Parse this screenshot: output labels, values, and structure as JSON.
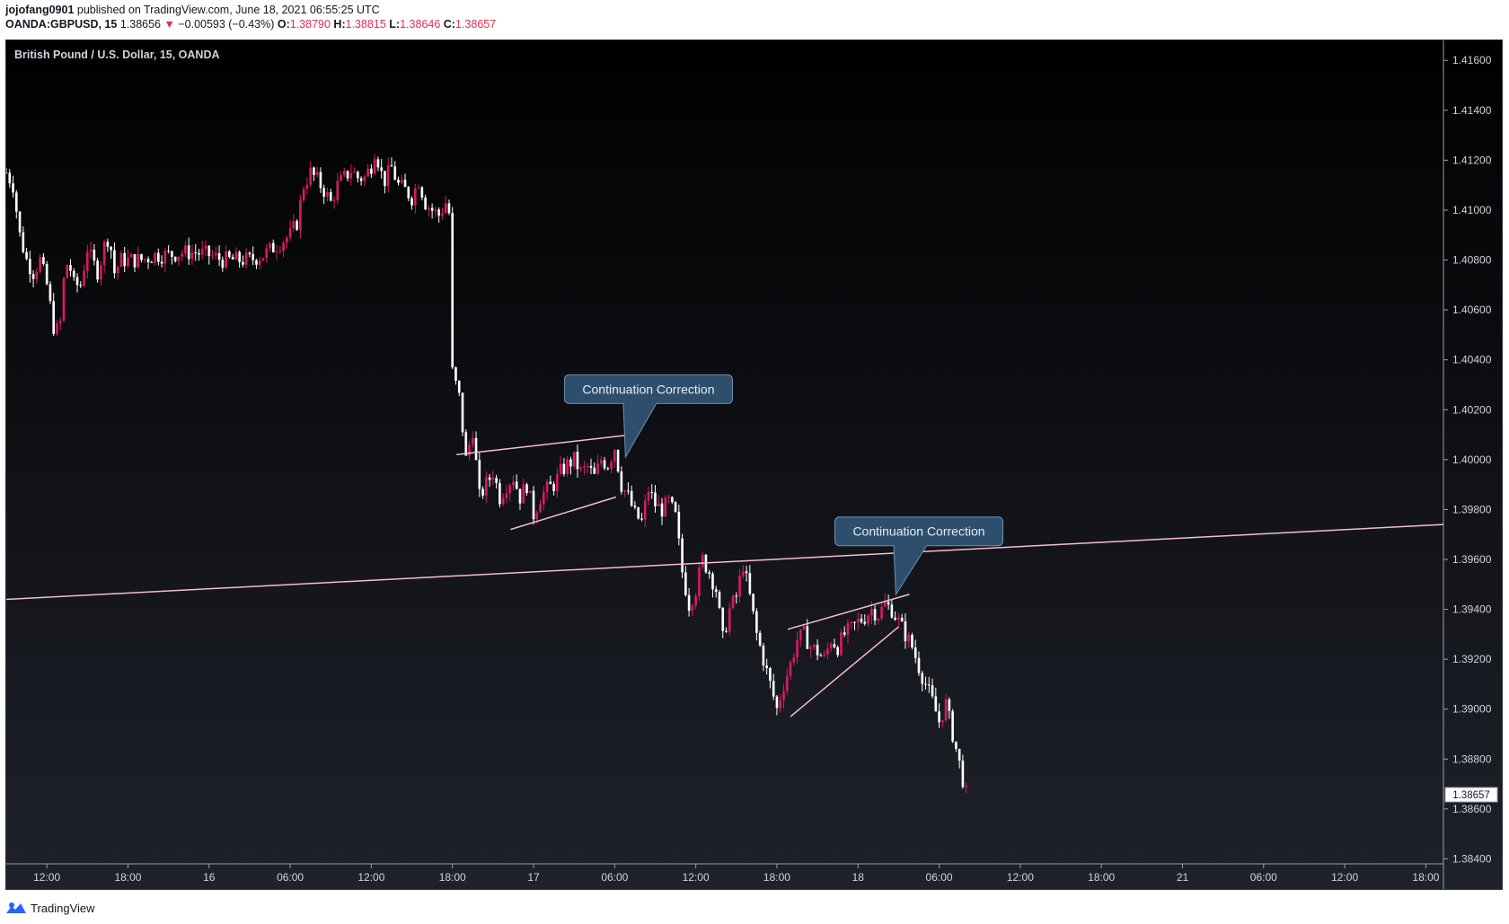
{
  "header": {
    "author": "jojofang0901",
    "published": " published on TradingView.com, June 18, 2021 06:55:25 UTC",
    "symbol": "OANDA:GBPUSD, 15",
    "last": "1.38656",
    "arrow": "▼",
    "change": "−0.00593 (−0.43%)",
    "o_label": "O:",
    "o": "1.38790",
    "h_label": "H:",
    "h": "1.38815",
    "l_label": "L:",
    "l": "1.38646",
    "c_label": "C:",
    "c": "1.38657"
  },
  "chart_title": "British Pound / U.S. Dollar, 15, OANDA",
  "footer": {
    "brand": "TradingView"
  },
  "colors": {
    "up": "#d81b60",
    "down": "#ffffff",
    "trendline": "#f8bbd0",
    "callout": "#2e4e6e",
    "callout_border": "#6f8fae"
  },
  "chart_data": {
    "type": "candlestick",
    "ylim": [
      1.3838,
      1.4168
    ],
    "y_ticks": [
      "1.38400",
      "1.38600",
      "1.38800",
      "1.39000",
      "1.39200",
      "1.39400",
      "1.39600",
      "1.39800",
      "1.40000",
      "1.40200",
      "1.40400",
      "1.40600",
      "1.40800",
      "1.41000",
      "1.41200",
      "1.41400",
      "1.41600"
    ],
    "y_tick_values": [
      1.384,
      1.386,
      1.388,
      1.39,
      1.392,
      1.394,
      1.396,
      1.398,
      1.4,
      1.402,
      1.404,
      1.406,
      1.408,
      1.41,
      1.412,
      1.414,
      1.416
    ],
    "x_range_hours": [
      -3.0,
      103.3
    ],
    "x_ticks": [
      {
        "label": "12:00",
        "h": 0
      },
      {
        "label": "18:00",
        "h": 6
      },
      {
        "label": "16",
        "h": 12
      },
      {
        "label": "06:00",
        "h": 18
      },
      {
        "label": "12:00",
        "h": 24
      },
      {
        "label": "18:00",
        "h": 30
      },
      {
        "label": "17",
        "h": 36
      },
      {
        "label": "06:00",
        "h": 42
      },
      {
        "label": "12:00",
        "h": 48
      },
      {
        "label": "18:00",
        "h": 54
      },
      {
        "label": "18",
        "h": 60
      },
      {
        "label": "06:00",
        "h": 66
      },
      {
        "label": "12:00",
        "h": 72
      },
      {
        "label": "18:00",
        "h": 78
      },
      {
        "label": "21",
        "h": 84
      },
      {
        "label": "06:00",
        "h": 90
      },
      {
        "label": "12:00",
        "h": 96
      },
      {
        "label": "18:00",
        "h": 102
      }
    ],
    "price_path": [
      [
        -3.0,
        1.4115
      ],
      [
        -2.5,
        1.411
      ],
      [
        -2.0,
        1.409
      ],
      [
        -1.5,
        1.408
      ],
      [
        -1.0,
        1.4075
      ],
      [
        -0.5,
        1.408
      ],
      [
        0.0,
        1.407
      ],
      [
        0.6,
        1.405
      ],
      [
        1.0,
        1.4055
      ],
      [
        1.3,
        1.4075
      ],
      [
        1.6,
        1.408
      ],
      [
        2.0,
        1.407
      ],
      [
        2.5,
        1.407
      ],
      [
        3.0,
        1.4085
      ],
      [
        3.3,
        1.408
      ],
      [
        3.8,
        1.4075
      ],
      [
        4.2,
        1.4085
      ],
      [
        4.6,
        1.409
      ],
      [
        5.0,
        1.4075
      ],
      [
        5.5,
        1.408
      ],
      [
        6.0,
        1.408
      ],
      [
        7.0,
        1.408
      ],
      [
        8.0,
        1.4082
      ],
      [
        9.0,
        1.4082
      ],
      [
        10.0,
        1.4083
      ],
      [
        11.0,
        1.4083
      ],
      [
        12.0,
        1.4082
      ],
      [
        13.0,
        1.408
      ],
      [
        14.0,
        1.408
      ],
      [
        15.0,
        1.408
      ],
      [
        16.0,
        1.4082
      ],
      [
        17.0,
        1.4086
      ],
      [
        18.0,
        1.409
      ],
      [
        18.5,
        1.4095
      ],
      [
        19.0,
        1.411
      ],
      [
        19.5,
        1.4115
      ],
      [
        20.0,
        1.4112
      ],
      [
        20.5,
        1.4108
      ],
      [
        21.0,
        1.4103
      ],
      [
        21.5,
        1.411
      ],
      [
        22.0,
        1.4113
      ],
      [
        22.5,
        1.4116
      ],
      [
        23.0,
        1.4113
      ],
      [
        23.5,
        1.4113
      ],
      [
        24.0,
        1.4118
      ],
      [
        24.3,
        1.4125
      ],
      [
        24.7,
        1.4115
      ],
      [
        25.0,
        1.4112
      ],
      [
        25.5,
        1.4117
      ],
      [
        26.0,
        1.411
      ],
      [
        26.5,
        1.4108
      ],
      [
        27.0,
        1.4105
      ],
      [
        27.5,
        1.4112
      ],
      [
        28.0,
        1.4103
      ],
      [
        28.5,
        1.41
      ],
      [
        29.0,
        1.4098
      ],
      [
        29.5,
        1.4103
      ],
      [
        29.8,
        1.4098
      ],
      [
        30.0,
        1.4035
      ],
      [
        30.5,
        1.4025
      ],
      [
        31.0,
        1.4
      ],
      [
        31.5,
        1.4012
      ],
      [
        32.0,
        1.3985
      ],
      [
        32.5,
        1.399
      ],
      [
        33.0,
        1.3995
      ],
      [
        33.5,
        1.3985
      ],
      [
        34.0,
        1.399
      ],
      [
        34.5,
        1.3993
      ],
      [
        35.0,
        1.3985
      ],
      [
        35.5,
        1.399
      ],
      [
        36.0,
        1.3978
      ],
      [
        36.5,
        1.3985
      ],
      [
        37.0,
        1.3988
      ],
      [
        37.5,
        1.399
      ],
      [
        38.0,
        1.3995
      ],
      [
        38.5,
        1.3998
      ],
      [
        39.0,
        1.4
      ],
      [
        39.5,
        1.3995
      ],
      [
        40.0,
        1.3997
      ],
      [
        40.5,
        1.3993
      ],
      [
        41.0,
        1.4
      ],
      [
        41.5,
        1.3998
      ],
      [
        42.0,
        1.4005
      ],
      [
        42.5,
        1.399
      ],
      [
        43.0,
        1.3985
      ],
      [
        43.5,
        1.3978
      ],
      [
        44.0,
        1.3975
      ],
      [
        44.5,
        1.3988
      ],
      [
        45.0,
        1.3982
      ],
      [
        45.5,
        1.398
      ],
      [
        46.0,
        1.3983
      ],
      [
        46.5,
        1.3977
      ],
      [
        47.0,
        1.3955
      ],
      [
        47.5,
        1.3942
      ],
      [
        48.0,
        1.3948
      ],
      [
        48.5,
        1.396
      ],
      [
        49.0,
        1.3955
      ],
      [
        49.5,
        1.3948
      ],
      [
        50.0,
        1.3928
      ],
      [
        50.5,
        1.394
      ],
      [
        51.0,
        1.3945
      ],
      [
        51.5,
        1.3958
      ],
      [
        52.0,
        1.3945
      ],
      [
        52.5,
        1.393
      ],
      [
        53.0,
        1.392
      ],
      [
        53.5,
        1.391
      ],
      [
        54.0,
        1.39
      ],
      [
        54.5,
        1.391
      ],
      [
        55.0,
        1.3918
      ],
      [
        55.5,
        1.3928
      ],
      [
        56.0,
        1.393
      ],
      [
        56.5,
        1.3925
      ],
      [
        57.0,
        1.3923
      ],
      [
        57.5,
        1.392
      ],
      [
        58.0,
        1.3928
      ],
      [
        58.5,
        1.3925
      ],
      [
        59.0,
        1.393
      ],
      [
        59.5,
        1.3932
      ],
      [
        60.0,
        1.3935
      ],
      [
        60.5,
        1.3937
      ],
      [
        61.0,
        1.394
      ],
      [
        61.5,
        1.3938
      ],
      [
        62.0,
        1.3942
      ],
      [
        62.5,
        1.394
      ],
      [
        63.0,
        1.3935
      ],
      [
        63.5,
        1.393
      ],
      [
        64.0,
        1.3925
      ],
      [
        64.5,
        1.3917
      ],
      [
        65.0,
        1.391
      ],
      [
        65.5,
        1.3903
      ],
      [
        66.0,
        1.3895
      ],
      [
        66.5,
        1.3902
      ],
      [
        67.0,
        1.389
      ],
      [
        67.5,
        1.3878
      ],
      [
        68.0,
        1.3866
      ]
    ],
    "callouts": [
      {
        "text": "Continuation Correction",
        "h": 44.5,
        "y": 1.4034,
        "tip_h": 42.8,
        "tip_y": 1.4001
      },
      {
        "text": "Continuation Correction",
        "h": 64.5,
        "y": 1.3977,
        "tip_h": 62.8,
        "tip_y": 1.3946
      }
    ],
    "trendlines": [
      {
        "h1": -3.0,
        "y1": 1.3944,
        "h2": 103.3,
        "y2": 1.3974
      },
      {
        "h1": 30.3,
        "y1": 1.4002,
        "h2": 43.3,
        "y2": 1.401
      },
      {
        "h1": 34.3,
        "y1": 1.3972,
        "h2": 42.1,
        "y2": 1.3985
      },
      {
        "h1": 54.8,
        "y1": 1.3932,
        "h2": 63.8,
        "y2": 1.3946
      },
      {
        "h1": 55.0,
        "y1": 1.3897,
        "h2": 63.0,
        "y2": 1.3933
      }
    ],
    "last_price": {
      "label": "1.38657",
      "value": 1.38657
    }
  }
}
